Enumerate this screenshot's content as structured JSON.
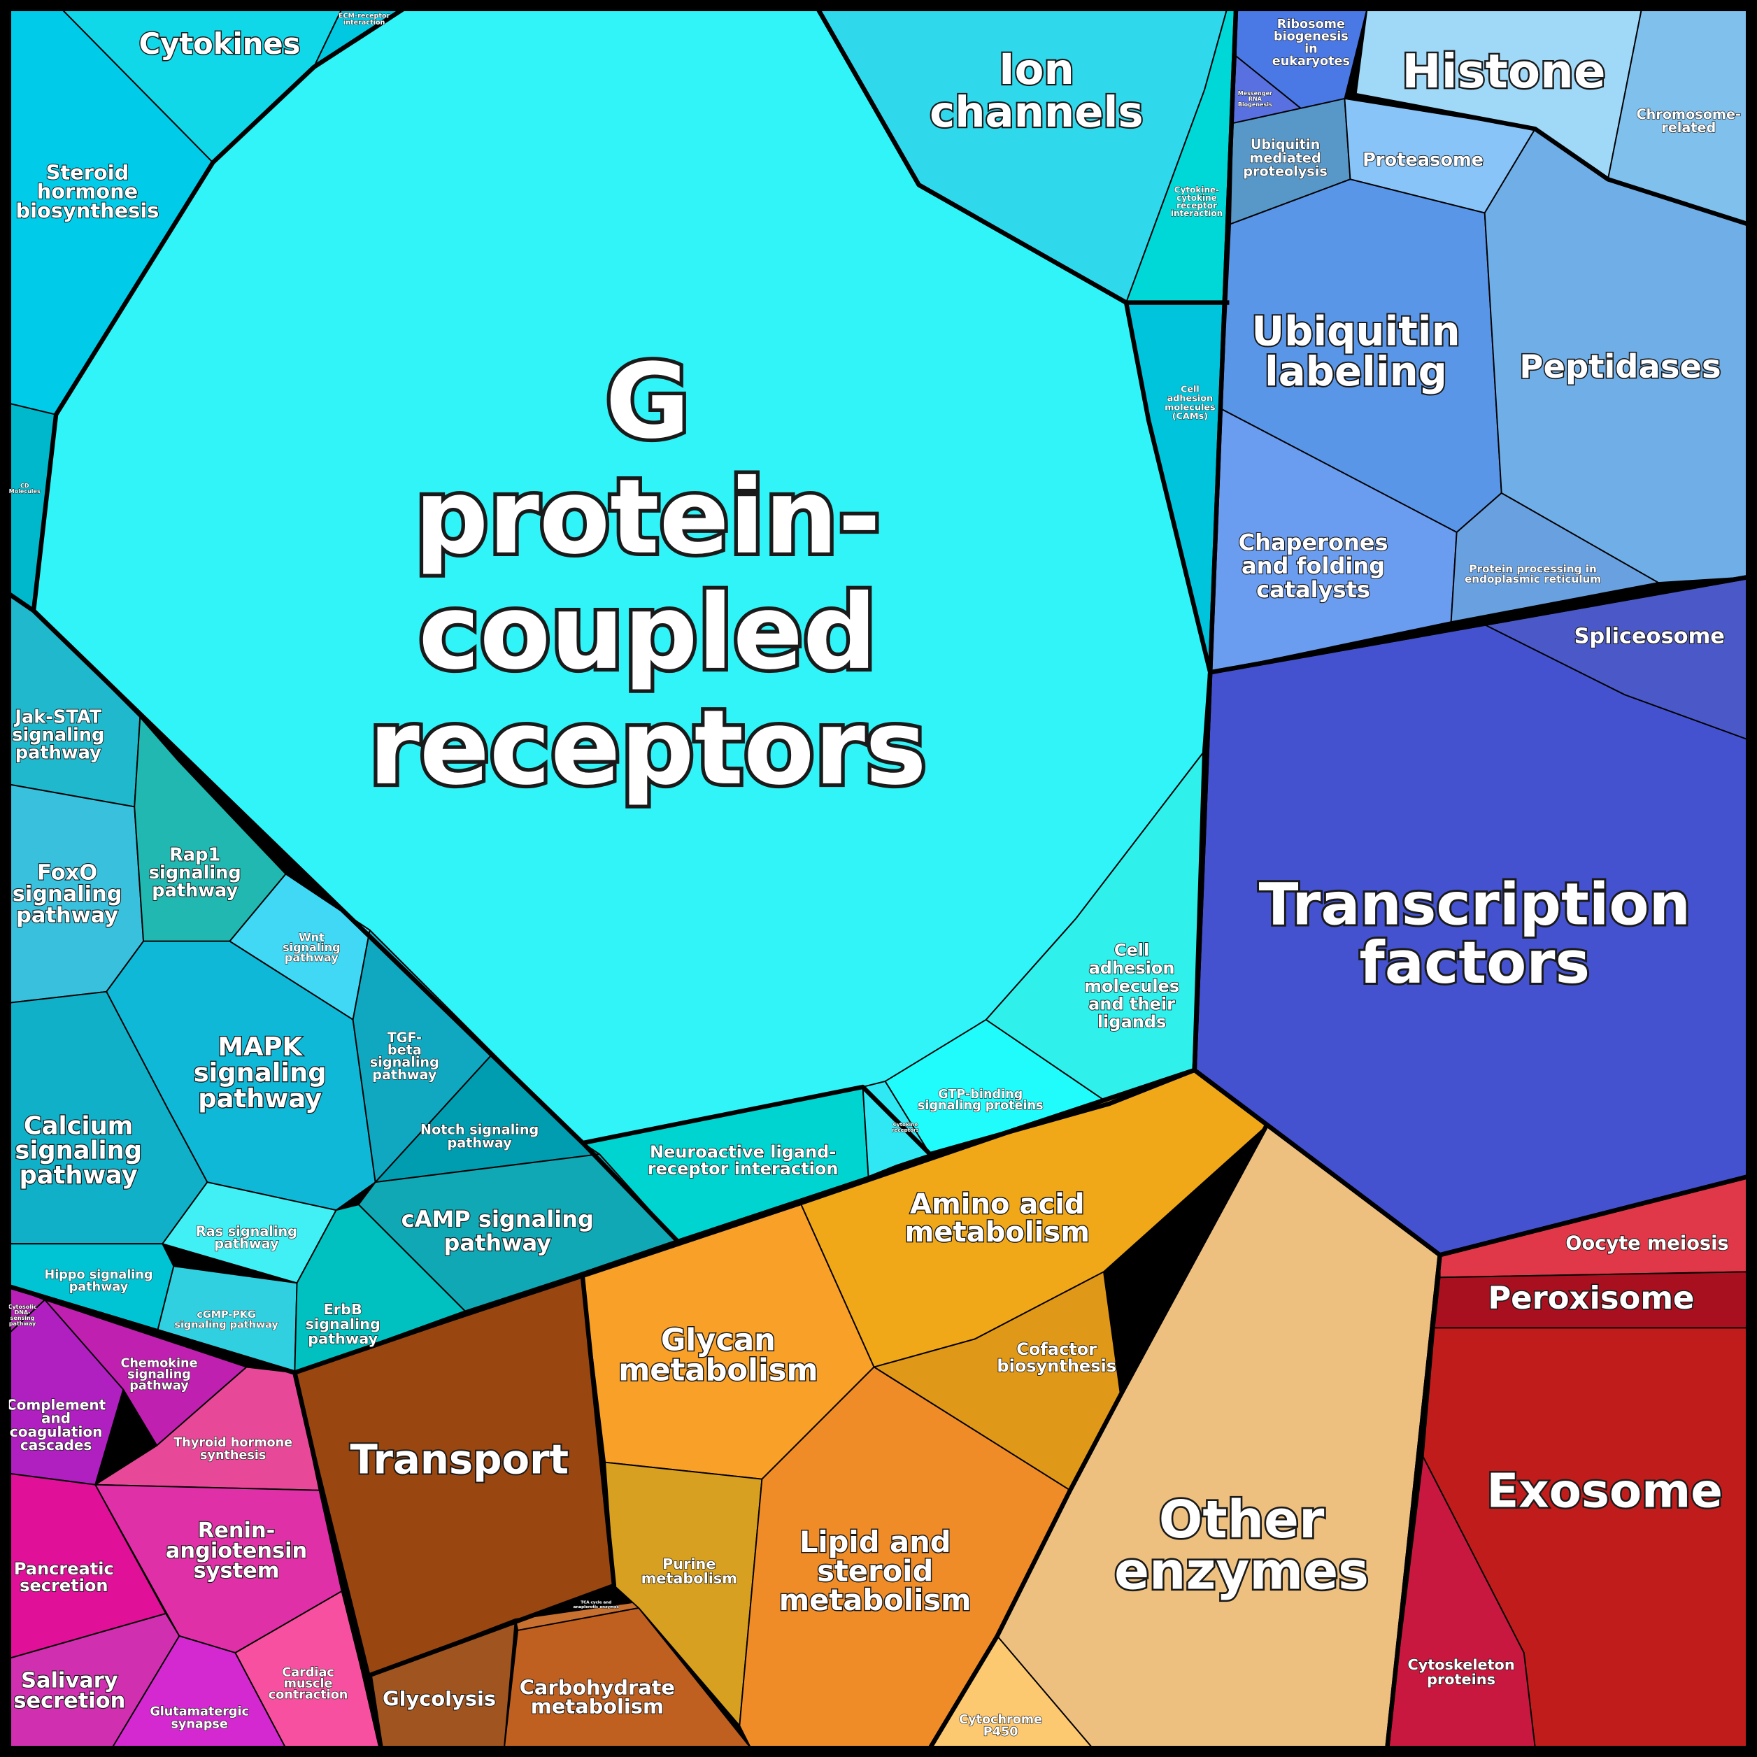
{
  "regions": {
    "cytokines": {
      "label": [
        "Cytokines"
      ],
      "color": "#10d8e8"
    },
    "steroid": {
      "label": [
        "Steroid",
        "hormone",
        "biosynthesis"
      ],
      "color": "#00cbe8"
    },
    "ecm": {
      "label": [
        "ECM-receptor",
        "interaction"
      ],
      "color": "#00c8e0"
    },
    "cd": {
      "label": [
        "CD",
        "Molecules"
      ],
      "color": "#00b8cc"
    },
    "ion": {
      "label": [
        "Ion",
        "channels"
      ],
      "color": "#30d8ec"
    },
    "cytokine_cytokine": {
      "label": [
        "Cytokine-",
        "cytokine",
        "receptor",
        "interaction"
      ],
      "color": "#00d8d8"
    },
    "cams": {
      "label": [
        "Cell",
        "adhesion",
        "molecules",
        "(CAMs)"
      ],
      "color": "#00c4dc"
    },
    "gpcr": {
      "label": [
        "G",
        "protein-",
        "coupled",
        "receptors"
      ],
      "color": "#30f4f8"
    },
    "neuroactive": {
      "label": [
        "Neuroactive ligand-",
        "receptor interaction"
      ],
      "color": "#00d4d0"
    },
    "cytokine_receptors": {
      "label": [
        "Cytokine",
        "receptors"
      ],
      "color": "#30e8f4"
    },
    "gtp": {
      "label": [
        "GTP-binding",
        "signaling proteins"
      ],
      "color": "#20fcfc"
    },
    "cam_ligands": {
      "label": [
        "Cell",
        "adhesion",
        "molecules",
        "and their",
        "ligands"
      ],
      "color": "#30f0ec"
    },
    "jak": {
      "label": [
        "Jak-STAT",
        "signaling",
        "pathway"
      ],
      "color": "#20b8cc"
    },
    "foxo": {
      "label": [
        "FoxO",
        "signaling",
        "pathway"
      ],
      "color": "#38c0dc"
    },
    "rap1": {
      "label": [
        "Rap1",
        "signaling",
        "pathway"
      ],
      "color": "#20b8b0"
    },
    "wnt": {
      "label": [
        "Wnt",
        "signaling",
        "pathway"
      ],
      "color": "#40d8f4"
    },
    "mapk": {
      "label": [
        "MAPK",
        "signaling",
        "pathway"
      ],
      "color": "#10b8d8"
    },
    "tgf": {
      "label": [
        "TGF-",
        "beta",
        "signaling",
        "pathway"
      ],
      "color": "#10a8c0"
    },
    "notch": {
      "label": [
        "Notch signaling",
        "pathway"
      ],
      "color": "#009cb0"
    },
    "calcium": {
      "label": [
        "Calcium",
        "signaling",
        "pathway"
      ],
      "color": "#10b0c8"
    },
    "camp": {
      "label": [
        "cAMP signaling",
        "pathway"
      ],
      "color": "#10a8b4"
    },
    "ras": {
      "label": [
        "Ras signaling",
        "pathway"
      ],
      "color": "#40f0f4"
    },
    "hippo": {
      "label": [
        "Hippo signaling",
        "pathway"
      ],
      "color": "#00c4d4"
    },
    "cgmp": {
      "label": [
        "cGMP-PKG",
        "signaling pathway"
      ],
      "color": "#30d0e0"
    },
    "erbb": {
      "label": [
        "ErbB",
        "signaling",
        "pathway"
      ],
      "color": "#00c0c0"
    },
    "ribosome": {
      "label": [
        "Ribosome",
        "biogenesis",
        "in",
        "eukaryotes"
      ],
      "color": "#4a78e4"
    },
    "mrna": {
      "label": [
        "Messenger",
        "RNA",
        "Biogenesis"
      ],
      "color": "#5870e0"
    },
    "histone": {
      "label": [
        "Histone"
      ],
      "color": "#a0d8f8"
    },
    "chromosome": {
      "label": [
        "Chromosome-",
        "related"
      ],
      "color": "#80c0ec"
    },
    "ubiq_mediated": {
      "label": [
        "Ubiquitin",
        "mediated",
        "proteolysis"
      ],
      "color": "#5898c8"
    },
    "proteasome": {
      "label": [
        "Proteasome"
      ],
      "color": "#88c4f8"
    },
    "ubiquitin_labeling": {
      "label": [
        "Ubiquitin",
        "labeling"
      ],
      "color": "#5a96e8"
    },
    "peptidases": {
      "label": [
        "Peptidases"
      ],
      "color": "#70aee8"
    },
    "chaperones": {
      "label": [
        "Chaperones",
        "and folding",
        "catalysts"
      ],
      "color": "#6a9cf0"
    },
    "er": {
      "label": [
        "Protein processing in",
        "endoplasmic reticulum"
      ],
      "color": "#68a0e0"
    },
    "spliceosome": {
      "label": [
        "Spliceosome"
      ],
      "color": "#4a58c8"
    },
    "tf": {
      "label": [
        "Transcription",
        "factors"
      ],
      "color": "#4452d0"
    },
    "oocyte": {
      "label": [
        "Oocyte meiosis"
      ],
      "color": "#e03848"
    },
    "peroxisome": {
      "label": [
        "Peroxisome"
      ],
      "color": "#a81020"
    },
    "exosome": {
      "label": [
        "Exosome"
      ],
      "color": "#c01c1c"
    },
    "cytoskeleton": {
      "label": [
        "Cytoskeleton",
        "proteins"
      ],
      "color": "#c81840"
    },
    "transport": {
      "label": [
        "Transport"
      ],
      "color": "#9a4610"
    },
    "glycolysis": {
      "label": [
        "Glycolysis"
      ],
      "color": "#a05420"
    },
    "carbohydrate": {
      "label": [
        "Carbohydrate",
        "metabolism"
      ],
      "color": "#c06020"
    },
    "glycan": {
      "label": [
        "Glycan",
        "metabolism"
      ],
      "color": "#f8a028"
    },
    "purine": {
      "label": [
        "Purine",
        "metabolism"
      ],
      "color": "#d8a020"
    },
    "tca": {
      "label": [
        "TCA cycle and",
        "anaplerotic enzymes"
      ],
      "color": "#c87030"
    },
    "amino": {
      "label": [
        "Amino acid",
        "metabolism"
      ],
      "color": "#f0a818"
    },
    "cofactor": {
      "label": [
        "Cofactor",
        "biosynthesis"
      ],
      "color": "#e09818"
    },
    "lipid": {
      "label": [
        "Lipid and",
        "steroid",
        "metabolism"
      ],
      "color": "#f08c28"
    },
    "cytochrome": {
      "label": [
        "Cytochrome",
        "P450"
      ],
      "color": "#fcc870"
    },
    "other": {
      "label": [
        "Other",
        "enzymes"
      ],
      "color": "#eec080"
    },
    "cytosolic_dna": {
      "label": [
        "Cytosolic",
        "DNA-",
        "sensing",
        "pathway"
      ],
      "color": "#b820b8"
    },
    "complement": {
      "label": [
        "Complement",
        "and",
        "coagulation",
        "cascades"
      ],
      "color": "#b020c0"
    },
    "chemokine": {
      "label": [
        "Chemokine",
        "signaling",
        "pathway"
      ],
      "color": "#c020b0"
    },
    "thyroid": {
      "label": [
        "Thyroid hormone",
        "synthesis"
      ],
      "color": "#e84898"
    },
    "renin": {
      "label": [
        "Renin-",
        "angiotensin",
        "system"
      ],
      "color": "#e030a8"
    },
    "pancreatic": {
      "label": [
        "Pancreatic",
        "secretion"
      ],
      "color": "#e01098"
    },
    "salivary": {
      "label": [
        "Salivary",
        "secretion"
      ],
      "color": "#d030b0"
    },
    "glutamatergic": {
      "label": [
        "Glutamatergic",
        "synapse"
      ],
      "color": "#d428d0"
    },
    "cardiac": {
      "label": [
        "Cardiac",
        "muscle",
        "contraction"
      ],
      "color": "#f850a0"
    }
  }
}
